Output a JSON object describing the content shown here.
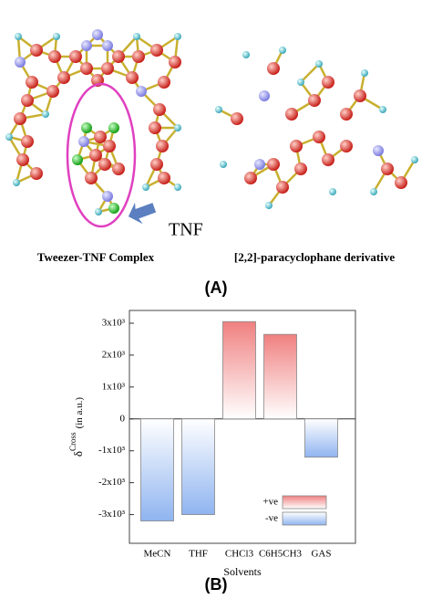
{
  "panel_a": {
    "arrow_label": "TNF",
    "left_caption": "Tweezer-TNF Complex",
    "right_caption": "[2,2]-paracyclophane derivative",
    "panel_label": "(A)"
  },
  "panel_b_label": "(B)",
  "chart_data": {
    "type": "bar",
    "xlabel": "Solvents",
    "ylabel": {
      "symbol": "δ",
      "superscript": "Cross",
      "text": "(in a.u.)"
    },
    "categories": [
      "MeCN",
      "THF",
      "CHCl3",
      "C6H5CH3",
      "GAS"
    ],
    "series": [
      {
        "name": "+ve",
        "color": "#f08080",
        "values": [
          null,
          null,
          3050,
          2650,
          null
        ]
      },
      {
        "name": "-ve",
        "color": "#8fb4f0",
        "values": [
          -3200,
          -3000,
          null,
          null,
          -1200
        ]
      }
    ],
    "ylim": [
      -3900,
      3400
    ],
    "yticks": [
      {
        "value": -3000,
        "label": "-3x10³"
      },
      {
        "value": -2000,
        "label": "-2x10³"
      },
      {
        "value": -1000,
        "label": "-1x10³"
      },
      0,
      {
        "value": 1000,
        "label": "1x10³"
      },
      {
        "value": 2000,
        "label": "2x10³"
      },
      {
        "value": 3000,
        "label": "3x10³"
      }
    ],
    "legend": "lower right"
  }
}
